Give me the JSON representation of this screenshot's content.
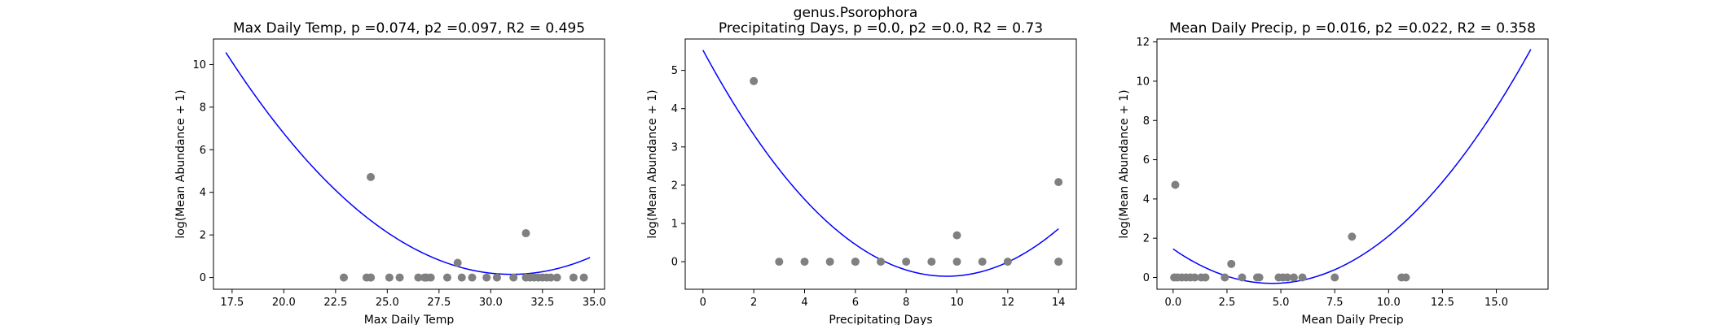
{
  "suptitle": "genus.Psorophora",
  "colors": {
    "points": "#808080",
    "fit_line": "#0000ff",
    "axes": "#000000",
    "background": "#ffffff"
  },
  "chart_data": [
    {
      "type": "scatter",
      "title": "Max Daily Temp, p =0.074, p2 =0.097, R2 = 0.495",
      "xlabel": "Max Daily Temp",
      "ylabel": "log(Mean Abundance + 1)",
      "xlim": [
        16.6,
        35.5
      ],
      "ylim": [
        -0.55,
        11.2
      ],
      "xticks": [
        17.5,
        20.0,
        22.5,
        25.0,
        27.5,
        30.0,
        32.5,
        35.0
      ],
      "xtick_labels": [
        "17.5",
        "20.0",
        "22.5",
        "25.0",
        "27.5",
        "30.0",
        "32.5",
        "35.0"
      ],
      "yticks": [
        0,
        2,
        4,
        6,
        8,
        10
      ],
      "ytick_labels": [
        "0",
        "2",
        "4",
        "6",
        "8",
        "10"
      ],
      "grid": false,
      "points": {
        "x": [
          22.9,
          24.0,
          24.2,
          24.2,
          25.1,
          25.6,
          26.5,
          26.8,
          26.9,
          27.1,
          27.9,
          28.6,
          29.1,
          29.8,
          30.3,
          31.1,
          31.7,
          31.9,
          32.1,
          32.3,
          32.5,
          32.7,
          32.9,
          33.2,
          34.0,
          34.5,
          28.4,
          24.2,
          31.7
        ],
        "y": [
          0,
          0,
          0,
          0,
          0,
          0,
          0,
          0,
          0,
          0,
          0,
          0,
          0,
          0,
          0,
          0,
          0,
          0,
          0,
          0,
          0,
          0,
          0,
          0,
          0,
          0,
          0.69,
          4.72,
          2.08
        ]
      },
      "fit": {
        "type": "quadratic",
        "x_range": [
          17.2,
          34.8
        ],
        "vertex_x": 31.0,
        "vertex_y": 0.15,
        "a": 0.0547
      }
    },
    {
      "type": "scatter",
      "title": "Precipitating Days, p =0.0, p2 =0.0, R2 = 0.73",
      "xlabel": "Precipitating Days",
      "ylabel": "log(Mean Abundance + 1)",
      "xlim": [
        -0.7,
        14.7
      ],
      "ylim": [
        -0.72,
        5.82
      ],
      "xticks": [
        0,
        2,
        4,
        6,
        8,
        10,
        12,
        14
      ],
      "xtick_labels": [
        "0",
        "2",
        "4",
        "6",
        "8",
        "10",
        "12",
        "14"
      ],
      "yticks": [
        0,
        1,
        2,
        3,
        4,
        5
      ],
      "ytick_labels": [
        "0",
        "1",
        "2",
        "3",
        "4",
        "5"
      ],
      "grid": false,
      "points": {
        "x": [
          3,
          4,
          5,
          6,
          6,
          7,
          8,
          9,
          10,
          11,
          12,
          14,
          14,
          10,
          2,
          14
        ],
        "y": [
          0,
          0,
          0,
          0,
          0,
          0,
          0,
          0,
          0,
          0,
          0,
          0,
          0,
          0.69,
          4.72,
          2.08
        ]
      },
      "fit": {
        "type": "quadratic",
        "x_range": [
          0,
          14
        ],
        "vertex_x": 9.6,
        "vertex_y": -0.38,
        "a": 0.0641
      }
    },
    {
      "type": "scatter",
      "title": "Mean Daily Precip, p =0.016, p2 =0.022, R2 = 0.358",
      "xlabel": "Mean Daily Precip",
      "ylabel": "log(Mean Abundance + 1)",
      "xlim": [
        -0.75,
        17.4
      ],
      "ylim": [
        -0.6,
        12.15
      ],
      "xticks": [
        0.0,
        2.5,
        5.0,
        7.5,
        10.0,
        12.5,
        15.0
      ],
      "xtick_labels": [
        "0.0",
        "2.5",
        "5.0",
        "7.5",
        "10.0",
        "12.5",
        "15.0"
      ],
      "yticks": [
        0,
        2,
        4,
        6,
        8,
        10,
        12
      ],
      "ytick_labels": [
        "0",
        "2",
        "4",
        "6",
        "8",
        "10",
        "12"
      ],
      "grid": false,
      "points": {
        "x": [
          0.05,
          0.2,
          0.4,
          0.6,
          0.8,
          1.0,
          1.3,
          1.5,
          2.4,
          3.2,
          3.9,
          4.0,
          4.9,
          5.1,
          5.3,
          5.6,
          6.0,
          7.5,
          10.6,
          10.8,
          2.7,
          0.1,
          8.3
        ],
        "y": [
          0,
          0,
          0,
          0,
          0,
          0,
          0,
          0,
          0,
          0,
          0,
          0,
          0,
          0,
          0,
          0,
          0,
          0,
          0,
          0,
          0.69,
          4.72,
          2.08
        ]
      },
      "fit": {
        "type": "quadratic",
        "x_range": [
          0,
          16.6
        ],
        "vertex_x": 4.6,
        "vertex_y": -0.3,
        "a": 0.0828
      }
    }
  ]
}
